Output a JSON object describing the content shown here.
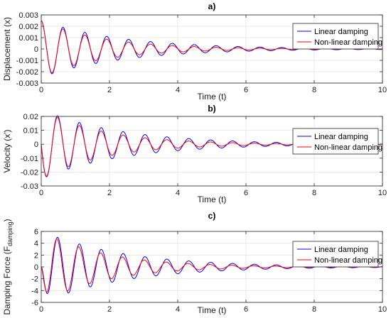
{
  "chart_data": [
    {
      "type": "line",
      "title": "a)",
      "xlabel": "Time (t)",
      "ylabel": "Displacement (x)",
      "xlim": [
        0,
        10
      ],
      "ylim": [
        -0.003,
        0.003
      ],
      "xticks": [
        "0",
        "2",
        "4",
        "6",
        "8",
        "10"
      ],
      "yticks": [
        "0.003",
        "0.002",
        "0.001",
        "0",
        "-0.001",
        "-0.002",
        "-0.003"
      ],
      "grid": true,
      "legend_position": "top-right",
      "series": [
        {
          "name": "Linear damping",
          "color": "#0000ff",
          "model": {
            "kind": "cos",
            "amp": 0.0025,
            "decay": 0.42,
            "omega": 9.8,
            "phase": 0
          }
        },
        {
          "name": "Non-linear damping",
          "color": "#ff0000",
          "model": {
            "kind": "cos",
            "amp": 0.0025,
            "decay": 0.55,
            "omega": 9.8,
            "phase": 0
          }
        }
      ]
    },
    {
      "type": "line",
      "title": "b)",
      "xlabel": "Time (t)",
      "ylabel": "Velocity (x')",
      "xlim": [
        0,
        10
      ],
      "ylim": [
        -0.03,
        0.02
      ],
      "xticks": [
        "0",
        "2",
        "4",
        "6",
        "8",
        "10"
      ],
      "yticks": [
        "0.02",
        "0.01",
        "0",
        "-0.01",
        "-0.02",
        "-0.03"
      ],
      "grid": true,
      "legend_position": "top-right",
      "series": [
        {
          "name": "Linear damping",
          "color": "#0000ff",
          "model": {
            "kind": "sin",
            "amp": -0.025,
            "decay": 0.42,
            "omega": 9.8,
            "phase": 0
          }
        },
        {
          "name": "Non-linear damping",
          "color": "#ff0000",
          "model": {
            "kind": "sin",
            "amp": -0.025,
            "decay": 0.55,
            "omega": 9.8,
            "phase": 0
          }
        }
      ]
    },
    {
      "type": "line",
      "title": "c)",
      "xlabel": "Time (t)",
      "ylabel_main": "Damping Force (F",
      "ylabel_sub": "damping",
      "ylabel_end": ")",
      "xlim": [
        0,
        10
      ],
      "ylim": [
        -6,
        6
      ],
      "xticks": [
        "0",
        "2",
        "4",
        "6",
        "8",
        "10"
      ],
      "yticks": [
        "6",
        "4",
        "2",
        "0",
        "-2",
        "-4",
        "-6"
      ],
      "grid": true,
      "legend_position": "top-right",
      "series": [
        {
          "name": "Linear damping",
          "color": "#0000ff",
          "model": {
            "kind": "force",
            "amp": 6.2,
            "decay": 0.42,
            "omega": 9.8,
            "phase": 0
          }
        },
        {
          "name": "Non-linear damping",
          "color": "#ff0000",
          "model": {
            "kind": "force",
            "amp": 6.2,
            "decay": 0.55,
            "omega": 9.8,
            "phase": 0.2
          }
        }
      ]
    }
  ]
}
